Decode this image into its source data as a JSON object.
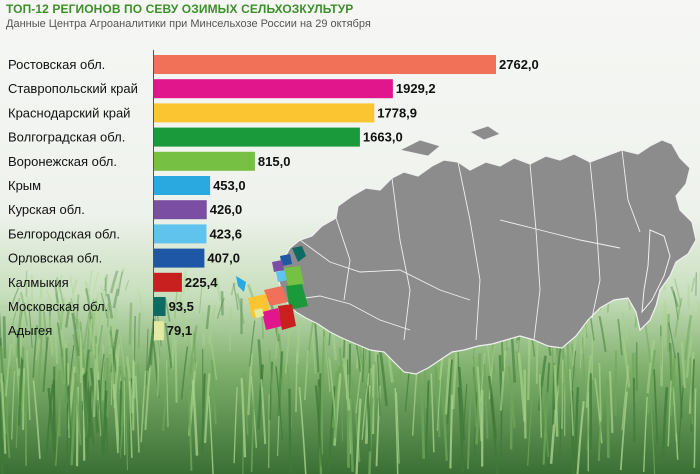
{
  "header": {
    "title": "ТОП-12 РЕГИОНОВ ПО СЕВУ ОЗИМЫХ СЕЛЬХОЗКУЛЬТУР",
    "subtitle": "Данные Центра Агроаналитики при Минсельхозе России на 29 октября"
  },
  "chart_data": {
    "type": "bar",
    "orientation": "horizontal",
    "title": "ТОП-12 РЕГИОНОВ ПО СЕВУ ОЗИМЫХ СЕЛЬХОЗКУЛЬТУР",
    "subtitle": "Данные Центра Агроаналитики при Минсельхозе России на 29 октября",
    "xlabel": "",
    "ylabel": "",
    "xlim": [
      0,
      2762
    ],
    "grid": false,
    "legend": "none",
    "categories": [
      "Ростовская обл.",
      "Ставропольский край",
      "Краснодарский край",
      "Волгоградская обл.",
      "Воронежская обл.",
      "Крым",
      "Курская обл.",
      "Белгородская обл.",
      "Орловская обл.",
      "Калмыкия",
      "Московская обл.",
      "Адыгея"
    ],
    "values": [
      2762.0,
      1929.2,
      1778.9,
      1663.0,
      815.0,
      453.0,
      426.0,
      423.6,
      407.0,
      225.4,
      93.5,
      79.1
    ],
    "value_labels": [
      "2762,0",
      "1929,2",
      "1778,9",
      "1663,0",
      "815,0",
      "453,0",
      "426,0",
      "423,6",
      "407,0",
      "225,4",
      "93,5",
      "79,1"
    ],
    "colors": [
      "#f07058",
      "#e2168c",
      "#fbc531",
      "#1a9a3a",
      "#76c043",
      "#2aa8e0",
      "#7a4fa3",
      "#5fc3ee",
      "#1d57a5",
      "#c8201f",
      "#0e6b63",
      "#e4eba0"
    ]
  },
  "map": {
    "region_fill": "#8c8c8c",
    "background_colors": [
      "#f4f6f3",
      "#b9d9ad",
      "#3f7f3a"
    ]
  }
}
